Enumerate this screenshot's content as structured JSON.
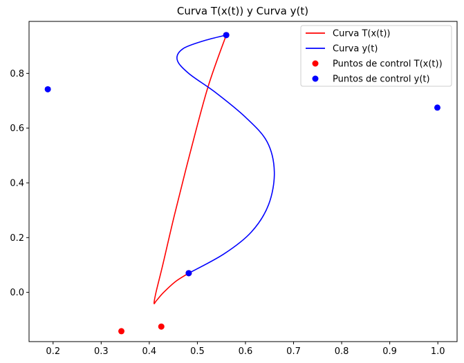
{
  "chart_data": {
    "type": "line",
    "title": "Curva T(x(t)) y Curva y(t)",
    "xlabel": "",
    "ylabel": "",
    "xlim": [
      0.15,
      1.04
    ],
    "ylim": [
      -0.18,
      0.99
    ],
    "xticks": [
      0.2,
      0.3,
      0.4,
      0.5,
      0.6,
      0.7,
      0.8,
      0.9,
      1.0
    ],
    "yticks": [
      0.0,
      0.2,
      0.4,
      0.6,
      0.8
    ],
    "xtick_labels": [
      "0.2",
      "0.3",
      "0.4",
      "0.5",
      "0.6",
      "0.7",
      "0.8",
      "0.9",
      "1.0"
    ],
    "ytick_labels": [
      "0.0",
      "0.2",
      "0.4",
      "0.6",
      "0.8"
    ],
    "grid": false,
    "legend_position": "top-right",
    "series": [
      {
        "name": "Curva T(x(t))",
        "kind": "line",
        "color": "#ff0000",
        "x": [
          0.482,
          0.455,
          0.43,
          0.415,
          0.41,
          0.414,
          0.428,
          0.452,
          0.485,
          0.522,
          0.56
        ],
        "y": [
          0.07,
          0.04,
          0.0,
          -0.03,
          -0.04,
          0.0,
          0.1,
          0.28,
          0.51,
          0.75,
          0.94
        ]
      },
      {
        "name": "Curva y(t)",
        "kind": "line",
        "color": "#0000ff",
        "x": [
          0.482,
          0.555,
          0.612,
          0.648,
          0.66,
          0.645,
          0.6,
          0.538,
          0.482,
          0.458,
          0.47,
          0.515,
          0.56
        ],
        "y": [
          0.07,
          0.14,
          0.22,
          0.32,
          0.44,
          0.55,
          0.64,
          0.73,
          0.8,
          0.85,
          0.89,
          0.92,
          0.94
        ]
      },
      {
        "name": "Puntos de control T(x(t))",
        "kind": "scatter",
        "color": "#ff0000",
        "x": [
          0.482,
          0.425,
          0.342,
          0.56
        ],
        "y": [
          0.07,
          -0.125,
          -0.142,
          0.94
        ]
      },
      {
        "name": "Puntos de control y(t)",
        "kind": "scatter",
        "color": "#0000ff",
        "x": [
          0.482,
          0.189,
          0.999,
          0.56
        ],
        "y": [
          0.07,
          0.742,
          0.675,
          0.94
        ]
      }
    ]
  }
}
